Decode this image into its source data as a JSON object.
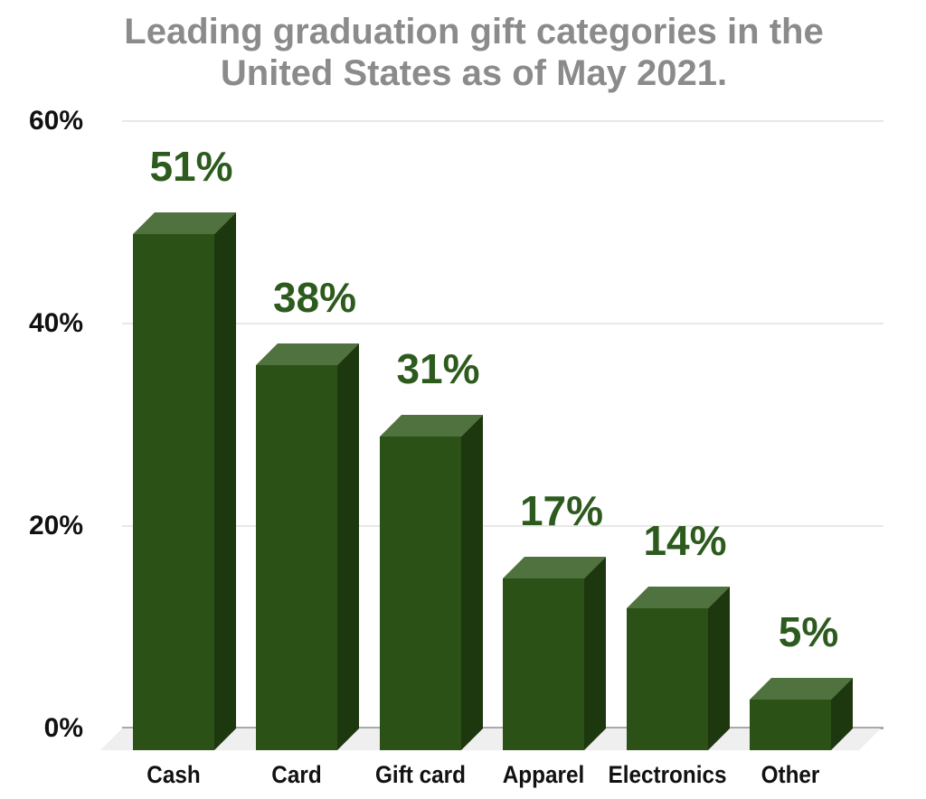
{
  "title": {
    "line1": "Leading graduation gift categories in the",
    "line2": "United States as of May 2021."
  },
  "chart_data": {
    "type": "bar",
    "style": "3d",
    "title": "Leading graduation gift categories in the United States as of May 2021.",
    "categories": [
      "Cash",
      "Card",
      "Gift card",
      "Apparel",
      "Electronics",
      "Other"
    ],
    "values": [
      51,
      38,
      31,
      17,
      14,
      5
    ],
    "data_labels": [
      "51%",
      "38%",
      "31%",
      "17%",
      "14%",
      "5%"
    ],
    "xlabel": "",
    "ylabel": "",
    "ylim": [
      0,
      60
    ],
    "yticks": [
      {
        "label": "0%",
        "value": 0
      },
      {
        "label": "20%",
        "value": 20
      },
      {
        "label": "40%",
        "value": 40
      },
      {
        "label": "60%",
        "value": 60
      }
    ],
    "grid": true,
    "legend": "none"
  },
  "colors": {
    "background": "#ffffff",
    "title_text": "#8b8b8b",
    "axis_tick_text": "#111111",
    "category_text": "#111111",
    "value_label_text": "#2d5b1e",
    "bar_front": "#2b5116",
    "bar_top": "#50723f",
    "bar_side": "#1d370e",
    "gridline": "#e8e8e8",
    "axis_line": "#a9a9a9",
    "floor": "#efefef"
  }
}
